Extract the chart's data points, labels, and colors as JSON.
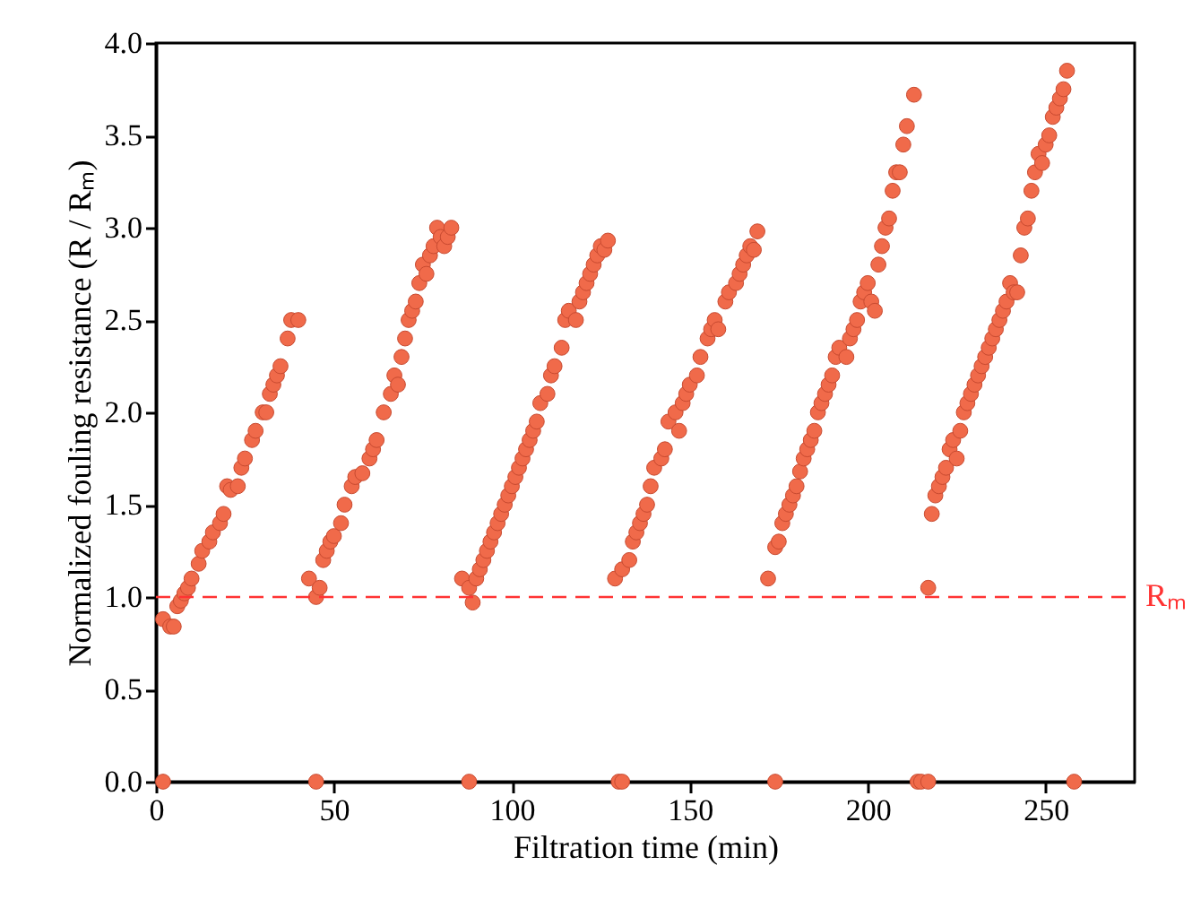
{
  "chart_data": {
    "type": "scatter",
    "xlabel": "Filtration time (min)",
    "ylabel": "Normalized fouling resistance (R / Rₘ)",
    "xlim": [
      0,
      275
    ],
    "xticks": [
      0,
      50,
      100,
      150,
      200,
      250
    ],
    "ylim": [
      0,
      4.0
    ],
    "yticks": [
      {
        "value": 0,
        "label": "0.0"
      },
      {
        "value": 0.5,
        "label": "0.5"
      },
      {
        "value": 1,
        "label": "1.0"
      },
      {
        "value": 1.5,
        "label": "1.5"
      },
      {
        "value": 2,
        "label": "2.0"
      },
      {
        "value": 2.5,
        "label": "2.5"
      },
      {
        "value": 3,
        "label": "3.0"
      },
      {
        "value": 3.5,
        "label": "3.5"
      },
      {
        "value": 4,
        "label": "4.0"
      }
    ],
    "grid": false,
    "marker": "circle",
    "ref_lines": [
      {
        "axis": "y",
        "value": 1.0,
        "label": "Rₘ",
        "color": "#ff3333",
        "line_style": "dashed"
      }
    ],
    "series": [
      {
        "color": "#f06a4a",
        "x": [
          2,
          45,
          88,
          130,
          131,
          174,
          214,
          215,
          217,
          258,
          2,
          4,
          5,
          6,
          7,
          8,
          9,
          10,
          12,
          13,
          15,
          16,
          18,
          19,
          20,
          21,
          23,
          24,
          25,
          27,
          28,
          30,
          31,
          32,
          33,
          34,
          35,
          37,
          38,
          40,
          43,
          45,
          46,
          47,
          48,
          49,
          50,
          52,
          53,
          55,
          56,
          58,
          60,
          61,
          62,
          64,
          66,
          67,
          68,
          69,
          70,
          71,
          72,
          73,
          74,
          75,
          76,
          77,
          78,
          79,
          80,
          81,
          82,
          83,
          86,
          88,
          89,
          90,
          91,
          92,
          93,
          94,
          95,
          96,
          97,
          98,
          99,
          100,
          101,
          102,
          103,
          104,
          105,
          106,
          107,
          108,
          110,
          111,
          112,
          114,
          115,
          116,
          118,
          119,
          120,
          121,
          122,
          123,
          124,
          125,
          126,
          127,
          129,
          131,
          133,
          134,
          135,
          136,
          137,
          138,
          139,
          140,
          142,
          143,
          144,
          146,
          147,
          148,
          149,
          150,
          152,
          153,
          155,
          156,
          157,
          158,
          160,
          161,
          163,
          164,
          165,
          166,
          167,
          168,
          169,
          172,
          174,
          175,
          176,
          177,
          178,
          179,
          180,
          181,
          182,
          183,
          184,
          185,
          186,
          187,
          188,
          189,
          190,
          191,
          192,
          194,
          195,
          196,
          197,
          198,
          199,
          200,
          201,
          202,
          203,
          204,
          205,
          206,
          207,
          208,
          209,
          210,
          211,
          213,
          217,
          218,
          219,
          220,
          221,
          222,
          223,
          224,
          225,
          226,
          227,
          228,
          229,
          230,
          231,
          232,
          233,
          234,
          235,
          236,
          237,
          238,
          239,
          240,
          241,
          242,
          243,
          244,
          245,
          246,
          247,
          248,
          249,
          250,
          251,
          252,
          253,
          254,
          255,
          256
        ],
        "values": [
          0,
          0,
          0,
          0,
          0,
          0,
          0,
          0,
          0,
          0,
          0.88,
          0.84,
          0.84,
          0.95,
          0.98,
          1.02,
          1.05,
          1.1,
          1.18,
          1.25,
          1.3,
          1.35,
          1.4,
          1.45,
          1.6,
          1.58,
          1.6,
          1.7,
          1.75,
          1.85,
          1.9,
          2.0,
          2.0,
          2.1,
          2.15,
          2.2,
          2.25,
          2.4,
          2.5,
          2.5,
          1.1,
          1.0,
          1.05,
          1.2,
          1.25,
          1.3,
          1.33,
          1.4,
          1.5,
          1.6,
          1.65,
          1.67,
          1.75,
          1.8,
          1.85,
          2.0,
          2.1,
          2.2,
          2.15,
          2.3,
          2.4,
          2.5,
          2.55,
          2.6,
          2.7,
          2.8,
          2.75,
          2.85,
          2.9,
          3.0,
          2.95,
          2.9,
          2.95,
          3.0,
          1.1,
          1.05,
          0.97,
          1.1,
          1.15,
          1.2,
          1.25,
          1.3,
          1.35,
          1.4,
          1.45,
          1.5,
          1.55,
          1.6,
          1.65,
          1.7,
          1.75,
          1.8,
          1.85,
          1.9,
          1.95,
          2.05,
          2.1,
          2.2,
          2.25,
          2.35,
          2.5,
          2.55,
          2.5,
          2.6,
          2.65,
          2.7,
          2.75,
          2.8,
          2.85,
          2.9,
          2.88,
          2.93,
          1.1,
          1.15,
          1.2,
          1.3,
          1.35,
          1.4,
          1.45,
          1.5,
          1.6,
          1.7,
          1.75,
          1.8,
          1.95,
          2.0,
          1.9,
          2.05,
          2.1,
          2.15,
          2.2,
          2.3,
          2.4,
          2.45,
          2.5,
          2.45,
          2.6,
          2.65,
          2.7,
          2.75,
          2.8,
          2.85,
          2.9,
          2.88,
          2.98,
          1.1,
          1.27,
          1.3,
          1.4,
          1.45,
          1.5,
          1.55,
          1.6,
          1.68,
          1.75,
          1.8,
          1.85,
          1.9,
          2.0,
          2.05,
          2.1,
          2.15,
          2.2,
          2.3,
          2.35,
          2.3,
          2.4,
          2.45,
          2.5,
          2.6,
          2.65,
          2.7,
          2.6,
          2.55,
          2.8,
          2.9,
          3.0,
          3.05,
          3.2,
          3.3,
          3.3,
          3.45,
          3.55,
          3.72,
          1.05,
          1.45,
          1.55,
          1.6,
          1.65,
          1.7,
          1.8,
          1.85,
          1.75,
          1.9,
          2.0,
          2.05,
          2.1,
          2.15,
          2.2,
          2.25,
          2.3,
          2.35,
          2.4,
          2.45,
          2.5,
          2.55,
          2.6,
          2.7,
          2.65,
          2.65,
          2.85,
          3.0,
          3.05,
          3.2,
          3.3,
          3.4,
          3.35,
          3.45,
          3.5,
          3.6,
          3.65,
          3.7,
          3.75,
          3.85
        ]
      }
    ]
  }
}
